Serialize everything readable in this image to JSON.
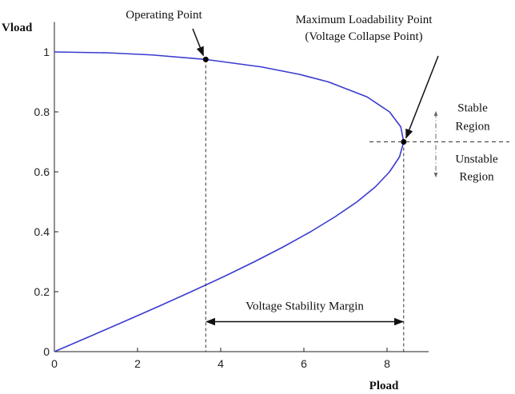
{
  "chart_data": {
    "type": "line",
    "xlabel": "Pload",
    "ylabel": "Vload",
    "xlim": [
      0,
      9
    ],
    "ylim": [
      0,
      1.1
    ],
    "xticks": [
      0,
      2,
      4,
      6,
      8
    ],
    "yticks": [
      0,
      0.2,
      0.4,
      0.6,
      0.8,
      1
    ],
    "series": [
      {
        "color": "#3a3ad0",
        "x": [
          0,
          0.84,
          1.67,
          2.49,
          3.29,
          4.07,
          4.81,
          5.51,
          6.16,
          6.75,
          7.28,
          7.72,
          8.06,
          8.3,
          8.4,
          8.33,
          8.06,
          7.52,
          6.59,
          5.9,
          4.98,
          3.64,
          2.35,
          1.3,
          0
        ],
        "values": [
          0,
          0.05,
          0.1,
          0.15,
          0.2,
          0.25,
          0.3,
          0.35,
          0.4,
          0.45,
          0.5,
          0.55,
          0.6,
          0.65,
          0.7,
          0.75,
          0.8,
          0.85,
          0.9,
          0.925,
          0.95,
          0.975,
          0.99,
          0.997,
          1
        ]
      }
    ],
    "points": [
      {
        "label": [
          "Operating Point"
        ],
        "x": 3.64,
        "y": 0.975
      },
      {
        "label": [
          "Maximum Loadability Point",
          "(Voltage Collapse Point)"
        ],
        "x": 8.4,
        "y": 0.7
      }
    ],
    "margin": {
      "label": "Voltage Stability Margin",
      "x": [
        3.64,
        8.4
      ],
      "y": 0.1
    },
    "regions": {
      "above": [
        "Stable",
        "Region"
      ],
      "below": [
        "Unstable",
        "Region"
      ]
    }
  }
}
